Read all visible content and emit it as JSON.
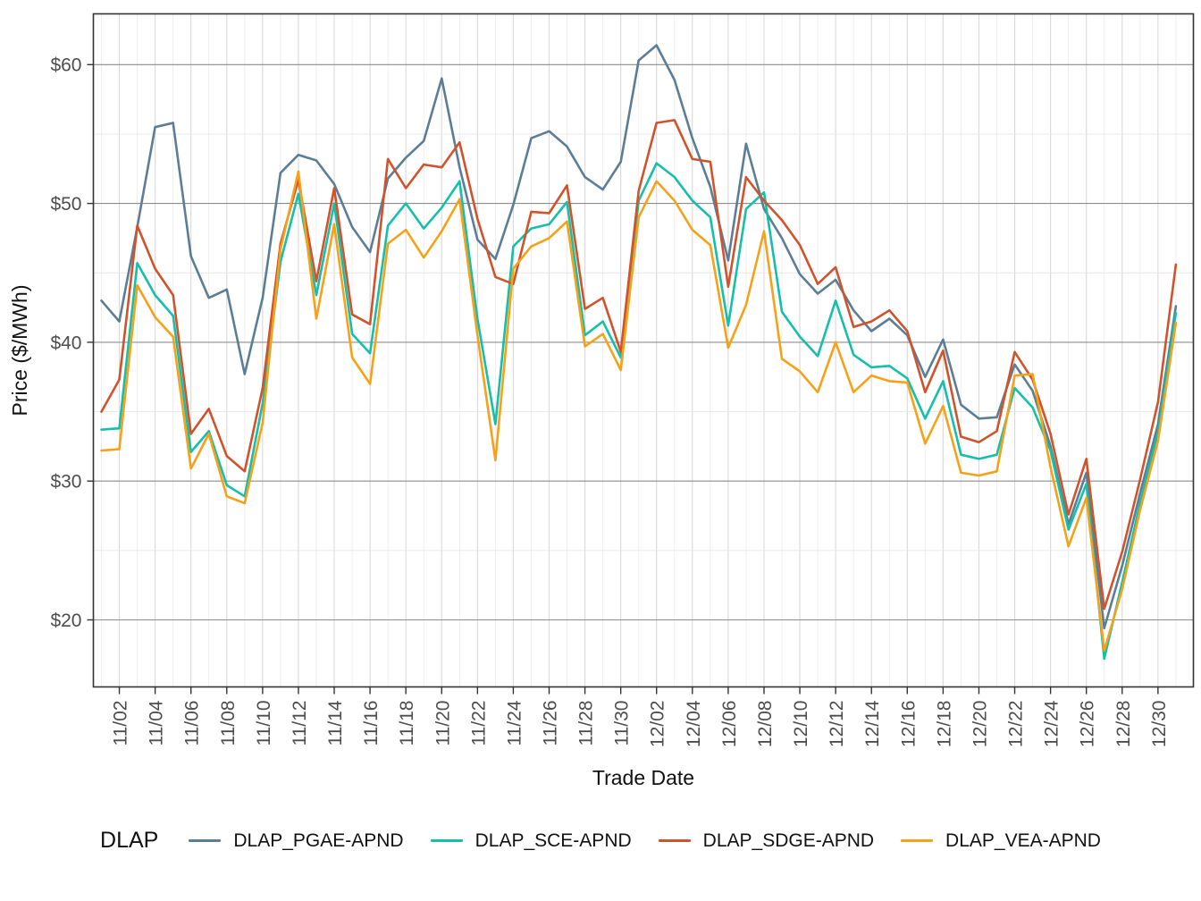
{
  "chart_data": {
    "type": "line",
    "title": "",
    "xlabel": "Trade Date",
    "ylabel": "Price ($/MWh)",
    "legend_title": "DLAP",
    "legend_position": "bottom",
    "grid": true,
    "background": "#ffffff",
    "panel_border_color": "#333333",
    "major_hgrid_color": "#8c8c8c",
    "minor_hgrid_color": "#e6e6e6",
    "major_vgrid_color": "#d9d9d9",
    "minor_vgrid_color": "#ededed",
    "ylim": [
      15.3,
      63.7
    ],
    "y_ticks": [
      20,
      30,
      40,
      50,
      60
    ],
    "y_tick_labels": [
      "$20",
      "$30",
      "$40",
      "$50",
      "$60"
    ],
    "x": [
      "11/01",
      "11/02",
      "11/03",
      "11/04",
      "11/05",
      "11/06",
      "11/07",
      "11/08",
      "11/09",
      "11/10",
      "11/11",
      "11/12",
      "11/13",
      "11/14",
      "11/15",
      "11/16",
      "11/17",
      "11/18",
      "11/19",
      "11/20",
      "11/21",
      "11/22",
      "11/23",
      "11/24",
      "11/25",
      "11/26",
      "11/27",
      "11/28",
      "11/29",
      "11/30",
      "12/01",
      "12/02",
      "12/03",
      "12/04",
      "12/05",
      "12/06",
      "12/07",
      "12/08",
      "12/09",
      "12/10",
      "12/11",
      "12/12",
      "12/13",
      "12/14",
      "12/15",
      "12/16",
      "12/17",
      "12/18",
      "12/19",
      "12/20",
      "12/21",
      "12/22",
      "12/23",
      "12/24",
      "12/25",
      "12/26",
      "12/27",
      "12/28",
      "12/29",
      "12/30",
      "12/31"
    ],
    "x_tick_labels": [
      "11/02",
      "11/04",
      "11/06",
      "11/08",
      "11/10",
      "11/12",
      "11/14",
      "11/16",
      "11/18",
      "11/20",
      "11/22",
      "11/24",
      "11/26",
      "11/28",
      "11/30",
      "12/02",
      "12/04",
      "12/06",
      "12/08",
      "12/10",
      "12/12",
      "12/14",
      "12/16",
      "12/18",
      "12/20",
      "12/22",
      "12/24",
      "12/26",
      "12/28",
      "12/30"
    ],
    "series": [
      {
        "name": "DLAP_PGAE-APND",
        "color": "#5b7e96",
        "values": [
          43.0,
          41.5,
          48.3,
          55.5,
          55.8,
          46.2,
          43.2,
          43.8,
          37.7,
          43.2,
          52.2,
          53.5,
          53.1,
          51.4,
          48.3,
          46.5,
          51.8,
          53.3,
          54.5,
          59.0,
          52.6,
          47.4,
          46.0,
          49.9,
          54.7,
          55.2,
          54.1,
          51.9,
          51.0,
          53.0,
          60.3,
          61.4,
          58.9,
          54.7,
          51.2,
          45.9,
          54.3,
          49.6,
          47.5,
          44.9,
          43.5,
          44.5,
          42.3,
          40.8,
          41.7,
          40.5,
          37.5,
          40.2,
          35.5,
          34.5,
          34.6,
          38.4,
          36.5,
          32.5,
          26.9,
          30.6,
          19.4,
          23.9,
          29.1,
          34.1,
          42.6
        ]
      },
      {
        "name": "DLAP_SCE-APND",
        "color": "#15bfab",
        "values": [
          33.7,
          33.8,
          45.7,
          43.4,
          41.9,
          32.1,
          33.6,
          29.7,
          28.9,
          35.6,
          45.8,
          50.7,
          43.4,
          50.0,
          40.6,
          39.2,
          48.4,
          50.0,
          48.2,
          49.7,
          51.6,
          41.7,
          34.1,
          46.9,
          48.2,
          48.5,
          50.1,
          40.5,
          41.5,
          38.9,
          50.2,
          52.9,
          51.9,
          50.2,
          49.0,
          41.2,
          49.6,
          50.8,
          42.2,
          40.4,
          39.0,
          43.0,
          39.1,
          38.2,
          38.3,
          37.4,
          34.5,
          37.2,
          31.9,
          31.6,
          31.9,
          36.7,
          35.3,
          32.2,
          26.5,
          29.8,
          17.2,
          22.7,
          28.4,
          33.5,
          42.1
        ]
      },
      {
        "name": "DLAP_SDGE-APND",
        "color": "#d0532b",
        "values": [
          35.0,
          37.3,
          48.4,
          45.3,
          43.4,
          33.4,
          35.2,
          31.8,
          30.7,
          36.7,
          47.1,
          51.7,
          44.4,
          51.1,
          42.0,
          41.3,
          53.2,
          51.1,
          52.8,
          52.6,
          54.4,
          48.9,
          44.7,
          44.2,
          49.4,
          49.3,
          51.3,
          42.4,
          43.2,
          39.3,
          50.9,
          55.8,
          56.0,
          53.2,
          53.0,
          44.0,
          51.9,
          50.2,
          48.8,
          47.0,
          44.2,
          45.4,
          41.1,
          41.5,
          42.3,
          40.8,
          36.4,
          39.4,
          33.2,
          32.8,
          33.6,
          39.3,
          37.3,
          33.4,
          27.6,
          31.6,
          20.8,
          24.9,
          30.1,
          35.7,
          45.6
        ]
      },
      {
        "name": "DLAP_VEA-APND",
        "color": "#f7a118",
        "values": [
          32.2,
          32.3,
          44.1,
          41.8,
          40.4,
          30.9,
          33.4,
          28.9,
          28.4,
          34.2,
          46.7,
          52.3,
          41.7,
          48.5,
          38.9,
          37.0,
          47.1,
          48.1,
          46.1,
          48.0,
          50.3,
          40.5,
          31.5,
          45.3,
          46.9,
          47.5,
          48.7,
          39.7,
          40.6,
          38.0,
          49.0,
          51.6,
          50.2,
          48.1,
          47.0,
          39.6,
          42.7,
          48.0,
          38.8,
          37.9,
          36.4,
          40.0,
          36.4,
          37.6,
          37.2,
          37.1,
          32.7,
          35.4,
          30.6,
          30.4,
          30.7,
          37.6,
          37.7,
          31.0,
          25.3,
          28.8,
          17.8,
          22.2,
          27.9,
          32.9,
          41.4
        ]
      }
    ]
  }
}
